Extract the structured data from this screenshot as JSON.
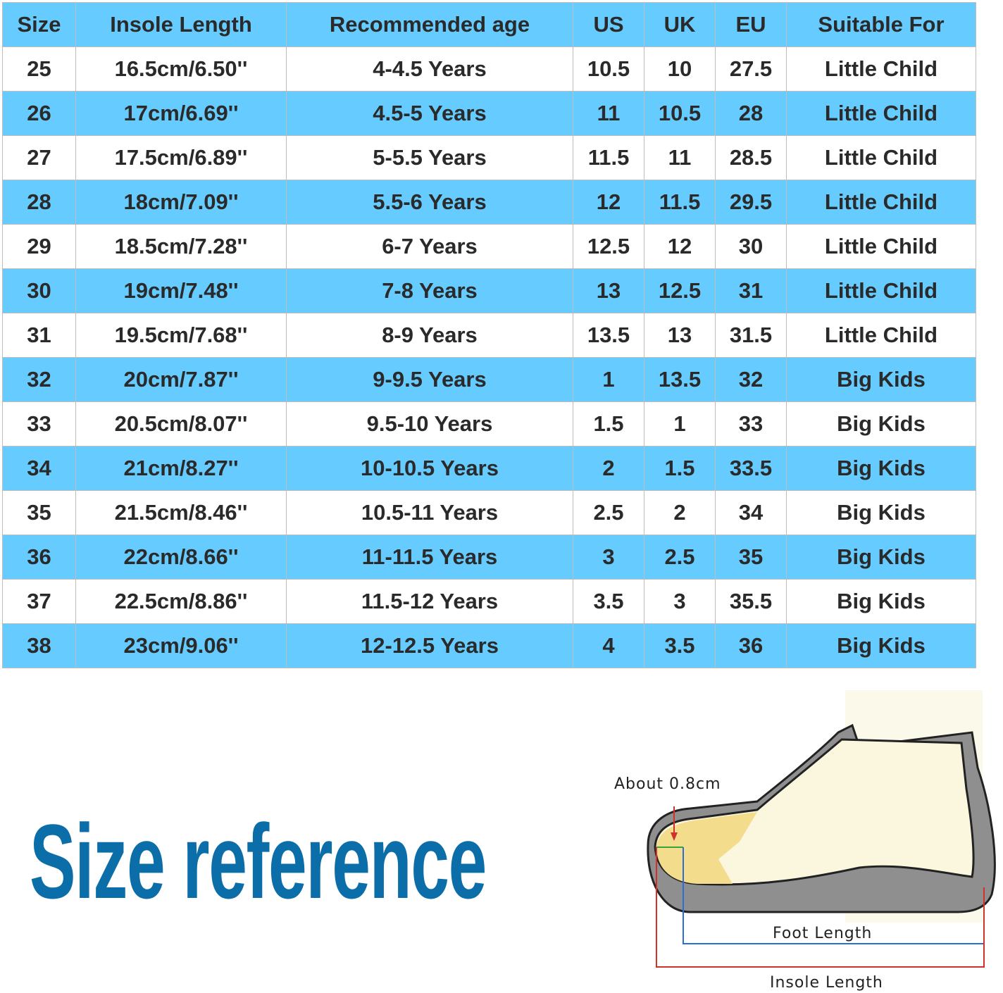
{
  "table": {
    "headers": [
      "Size",
      "Insole Length",
      "Recommended age",
      "US",
      "UK",
      "EU",
      "Suitable For"
    ],
    "rows": [
      [
        "25",
        "16.5cm/6.50''",
        "4-4.5 Years",
        "10.5",
        "10",
        "27.5",
        "Little Child"
      ],
      [
        "26",
        "17cm/6.69''",
        "4.5-5 Years",
        "11",
        "10.5",
        "28",
        "Little Child"
      ],
      [
        "27",
        "17.5cm/6.89''",
        "5-5.5 Years",
        "11.5",
        "11",
        "28.5",
        "Little Child"
      ],
      [
        "28",
        "18cm/7.09''",
        "5.5-6 Years",
        "12",
        "11.5",
        "29.5",
        "Little Child"
      ],
      [
        "29",
        "18.5cm/7.28''",
        "6-7 Years",
        "12.5",
        "12",
        "30",
        "Little Child"
      ],
      [
        "30",
        "19cm/7.48''",
        "7-8 Years",
        "13",
        "12.5",
        "31",
        "Little Child"
      ],
      [
        "31",
        "19.5cm/7.68''",
        "8-9 Years",
        "13.5",
        "13",
        "31.5",
        "Little Child"
      ],
      [
        "32",
        "20cm/7.87''",
        "9-9.5 Years",
        "1",
        "13.5",
        "32",
        "Big Kids"
      ],
      [
        "33",
        "20.5cm/8.07''",
        "9.5-10 Years",
        "1.5",
        "1",
        "33",
        "Big Kids"
      ],
      [
        "34",
        "21cm/8.27''",
        "10-10.5 Years",
        "2",
        "1.5",
        "33.5",
        "Big Kids"
      ],
      [
        "35",
        "21.5cm/8.46''",
        "10.5-11 Years",
        "2.5",
        "2",
        "34",
        "Big Kids"
      ],
      [
        "36",
        "22cm/8.66''",
        "11-11.5 Years",
        "3",
        "2.5",
        "35",
        "Big Kids"
      ],
      [
        "37",
        "22.5cm/8.86''",
        "11.5-12 Years",
        "3.5",
        "3",
        "35.5",
        "Big Kids"
      ],
      [
        "38",
        "23cm/9.06''",
        "12-12.5 Years",
        "4",
        "3.5",
        "36",
        "Big Kids"
      ]
    ]
  },
  "title": "Size reference",
  "diagram": {
    "toe_gap_label": "About 0.8cm",
    "foot_length_label": "Foot Length",
    "insole_length_label": "Insole Length"
  },
  "colors": {
    "header_blue": "#66ccff",
    "title_blue": "#0b6ea8",
    "foot_line": "#2b6fd6",
    "insole_line": "#d0312d"
  }
}
